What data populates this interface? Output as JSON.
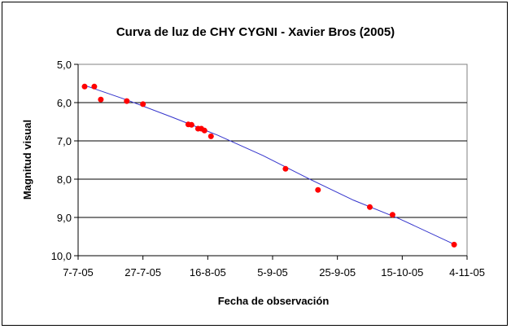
{
  "chart_data": {
    "type": "scatter",
    "title": "Curva de luz de CHY CYGNI - Xavier Bros (2005)",
    "xlabel": "Fecha de observación",
    "ylabel": "Magnitud visual",
    "x_ticks": [
      "7-7-05",
      "27-7-05",
      "16-8-05",
      "5-9-05",
      "25-9-05",
      "15-10-05",
      "4-11-05"
    ],
    "y_ticks": [
      "5,0",
      "6,0",
      "7,0",
      "8,0",
      "9,0",
      "10,0"
    ],
    "xlim": [
      "2005-07-07",
      "2005-11-04"
    ],
    "ylim": [
      5.0,
      10.0
    ],
    "y_inverted": true,
    "grid": "horizontal",
    "legend": "none",
    "colors": {
      "points": "#ff0000",
      "trend": "#3333cc",
      "plot_bg": "#ffffff"
    },
    "series": [
      {
        "points": [
          {
            "x": "2005-07-09",
            "y": 5.58
          },
          {
            "x": "2005-07-12",
            "y": 5.58
          },
          {
            "x": "2005-07-14",
            "y": 5.92
          },
          {
            "x": "2005-07-22",
            "y": 5.96
          },
          {
            "x": "2005-07-27",
            "y": 6.04
          },
          {
            "x": "2005-08-10",
            "y": 6.57
          },
          {
            "x": "2005-08-11",
            "y": 6.58
          },
          {
            "x": "2005-08-13",
            "y": 6.68
          },
          {
            "x": "2005-08-14",
            "y": 6.68
          },
          {
            "x": "2005-08-15",
            "y": 6.73
          },
          {
            "x": "2005-08-17",
            "y": 6.88
          },
          {
            "x": "2005-09-09",
            "y": 7.73
          },
          {
            "x": "2005-09-19",
            "y": 8.28
          },
          {
            "x": "2005-10-05",
            "y": 8.73
          },
          {
            "x": "2005-10-12",
            "y": 8.93
          },
          {
            "x": "2005-10-31",
            "y": 9.71
          }
        ]
      }
    ],
    "trendline": {
      "type": "polynomial",
      "points": [
        {
          "x": "2005-07-09",
          "y": 5.55
        },
        {
          "x": "2005-07-22",
          "y": 5.93
        },
        {
          "x": "2005-08-05",
          "y": 6.38
        },
        {
          "x": "2005-08-19",
          "y": 6.85
        },
        {
          "x": "2005-09-02",
          "y": 7.38
        },
        {
          "x": "2005-09-16",
          "y": 7.98
        },
        {
          "x": "2005-09-30",
          "y": 8.55
        },
        {
          "x": "2005-10-14",
          "y": 9.03
        },
        {
          "x": "2005-10-31",
          "y": 9.7
        }
      ]
    }
  }
}
